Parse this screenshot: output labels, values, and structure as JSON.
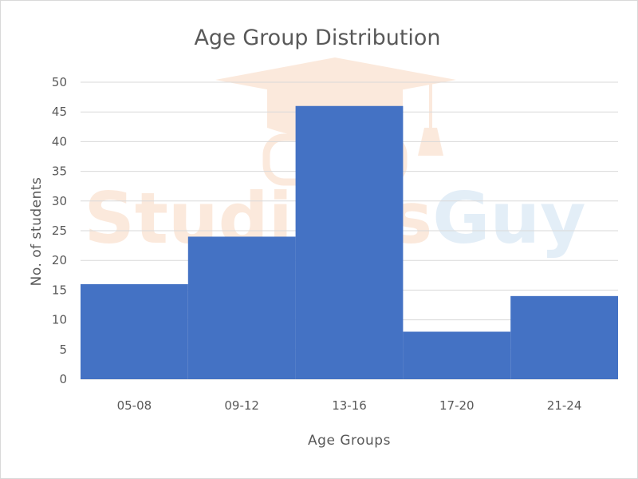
{
  "chart_data": {
    "type": "bar",
    "title": "Age Group Distribution",
    "xlabel": "Age Groups",
    "ylabel": "No. of students",
    "categories": [
      "05-08",
      "09-12",
      "13-16",
      "17-20",
      "21-24"
    ],
    "values": [
      16,
      24,
      46,
      8,
      14
    ],
    "ylim": [
      0,
      50
    ],
    "yticks": [
      "0",
      "5",
      "10",
      "15",
      "20",
      "25",
      "30",
      "35",
      "40",
      "45",
      "50"
    ],
    "grid": true,
    "legend": "none",
    "bar_color": "#4472c4"
  },
  "watermark": {
    "text_part1": "Studious",
    "text_part2": "Guy",
    "color_part1": "#f4b183",
    "color_part2": "#9dc3e6"
  }
}
